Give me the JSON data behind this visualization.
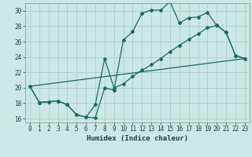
{
  "xlabel": "Humidex (Indice chaleur)",
  "xlim": [
    -0.5,
    23.5
  ],
  "ylim": [
    15.5,
    31.0
  ],
  "xticks": [
    0,
    1,
    2,
    3,
    4,
    5,
    6,
    7,
    8,
    9,
    10,
    11,
    12,
    13,
    14,
    15,
    16,
    17,
    18,
    19,
    20,
    21,
    22,
    23
  ],
  "yticks": [
    16,
    18,
    20,
    22,
    24,
    26,
    28,
    30
  ],
  "bg_color": "#cce8e4",
  "grid_color": "#aacfcb",
  "line_color": "#1a6b5a",
  "line1_x": [
    0,
    1,
    2,
    3,
    4,
    5,
    6,
    7,
    8,
    9,
    10,
    11,
    12,
    13,
    14,
    15,
    16,
    17,
    18,
    19,
    20,
    21,
    22,
    23
  ],
  "line1_y": [
    20.2,
    18.1,
    18.2,
    18.3,
    17.8,
    16.5,
    16.2,
    16.1,
    20.0,
    19.7,
    26.2,
    27.3,
    29.7,
    30.1,
    30.1,
    31.2,
    28.4,
    29.1,
    29.2,
    29.8,
    28.1,
    27.2,
    24.2,
    23.8
  ],
  "line2_x": [
    0,
    1,
    2,
    3,
    4,
    5,
    6,
    7,
    8,
    9,
    10,
    11,
    12,
    13,
    14,
    15,
    16,
    17,
    18,
    19,
    20,
    21,
    22,
    23
  ],
  "line2_y": [
    20.2,
    18.1,
    18.2,
    18.3,
    17.8,
    16.5,
    16.2,
    17.8,
    23.8,
    20.0,
    20.5,
    21.5,
    22.3,
    23.0,
    23.8,
    24.7,
    25.5,
    26.3,
    27.0,
    27.8,
    28.1,
    27.2,
    24.2,
    23.8
  ],
  "line3_x": [
    0,
    23
  ],
  "line3_y": [
    20.2,
    23.8
  ]
}
